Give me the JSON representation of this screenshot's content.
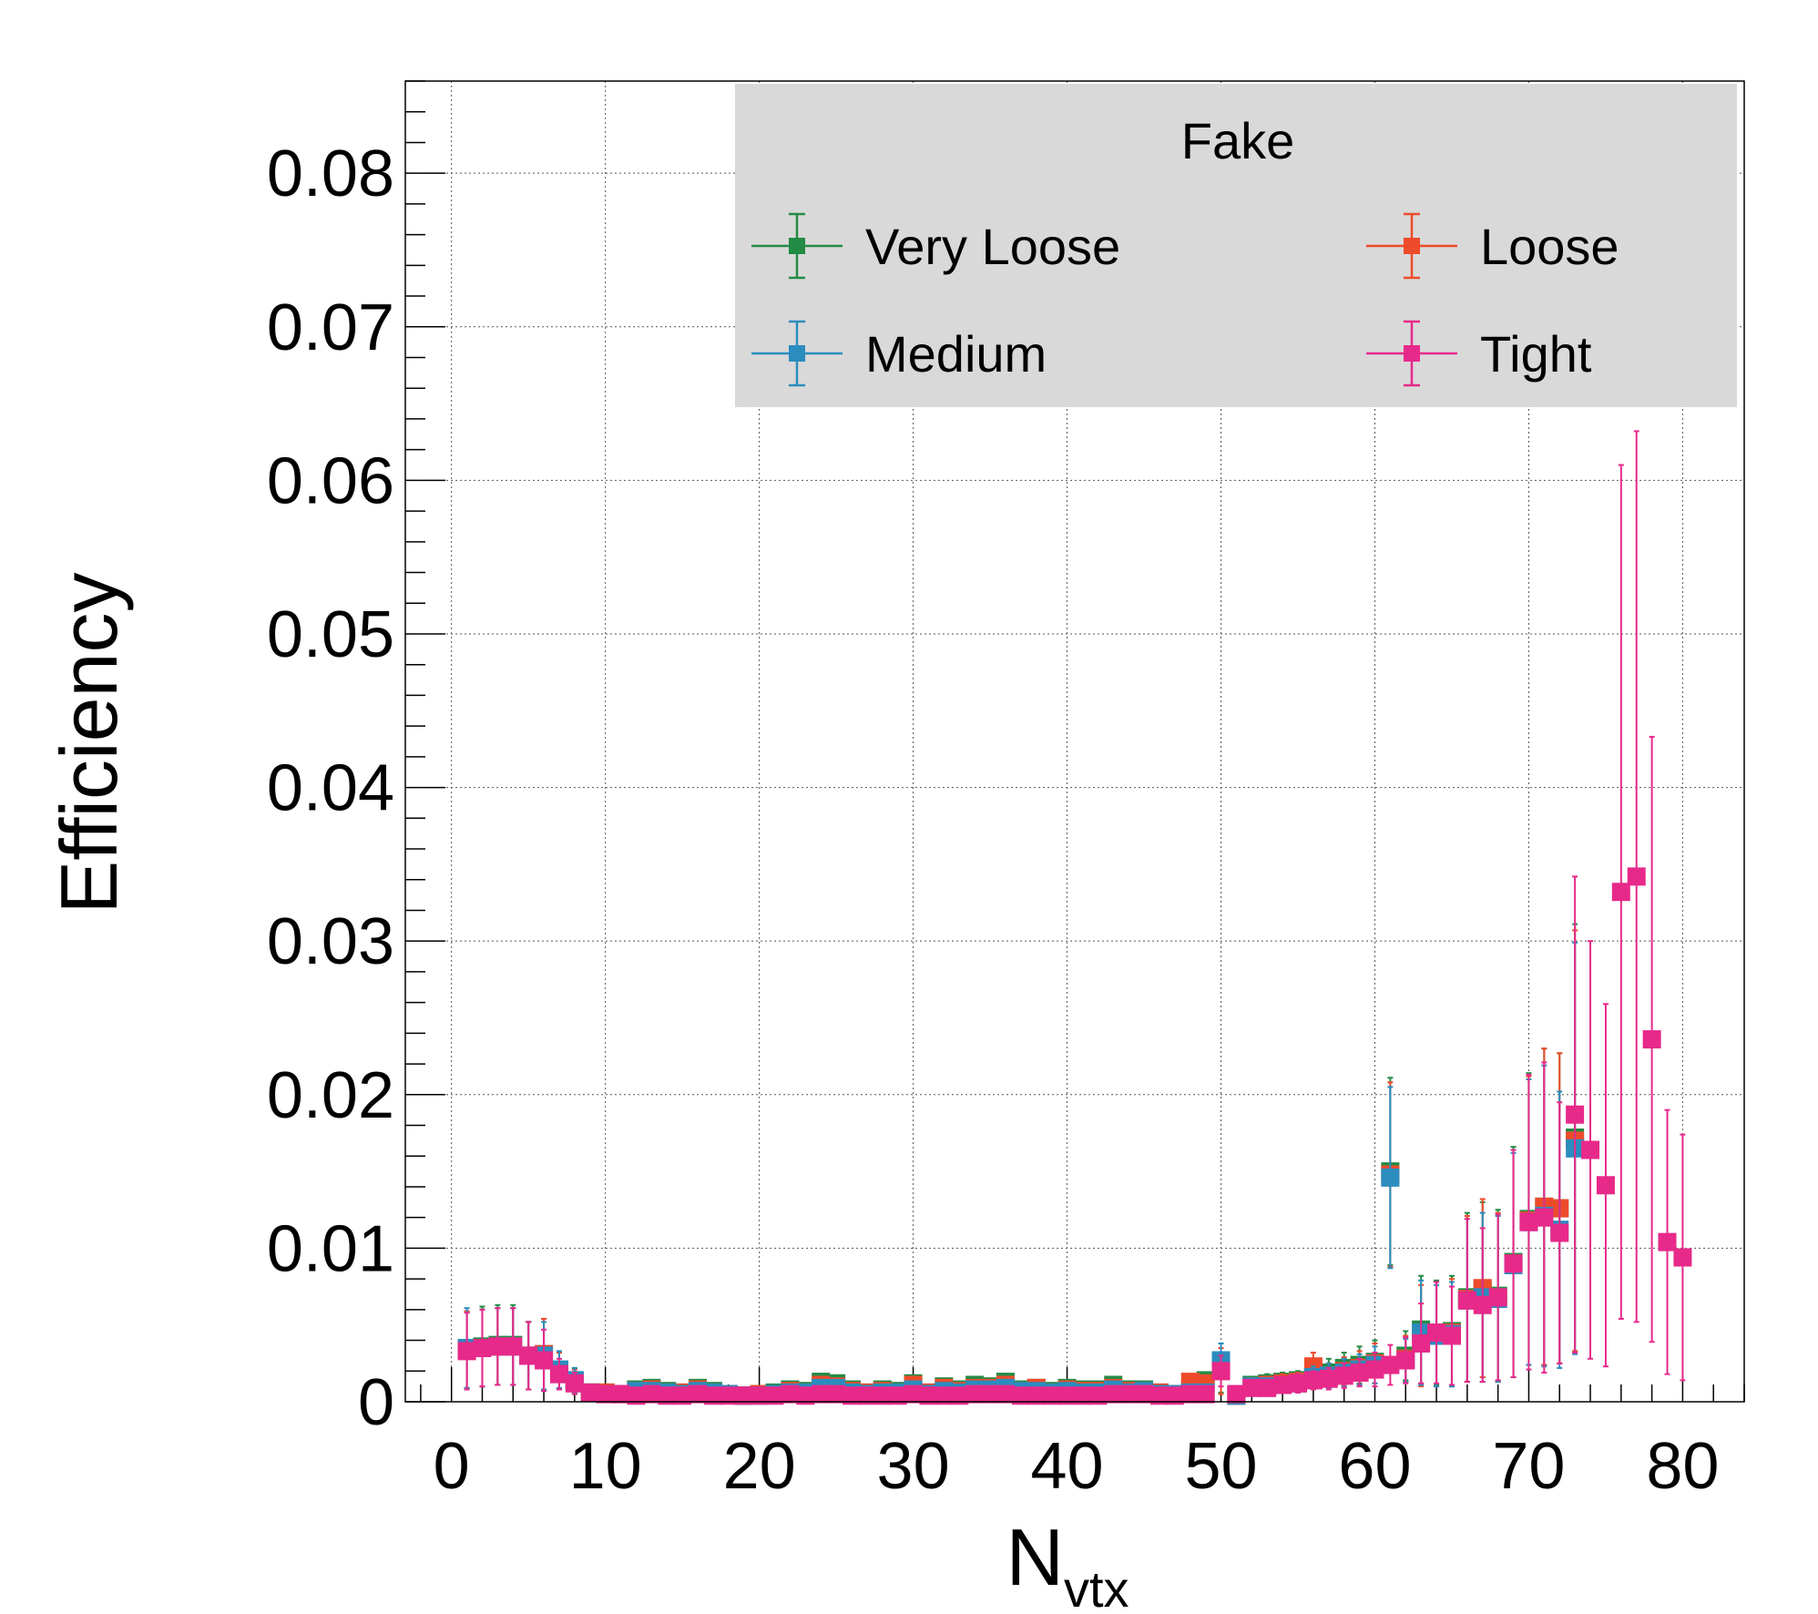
{
  "chart_data": {
    "type": "scatter",
    "xlabel_main": "N",
    "xlabel_sub": "vtx",
    "ylabel": "Efficiency",
    "xlim": [
      -3,
      84
    ],
    "ylim": [
      0,
      0.086
    ],
    "x_ticks": [
      0,
      10,
      20,
      30,
      40,
      50,
      60,
      70,
      80
    ],
    "x_tick_labels": [
      "0",
      "10",
      "20",
      "30",
      "40",
      "50",
      "60",
      "70",
      "80"
    ],
    "y_ticks": [
      0,
      0.01,
      0.02,
      0.03,
      0.04,
      0.05,
      0.06,
      0.07,
      0.08
    ],
    "y_tick_labels": [
      "0",
      "0.01",
      "0.02",
      "0.03",
      "0.04",
      "0.05",
      "0.06",
      "0.07",
      "0.08"
    ],
    "grid": true,
    "legend": {
      "title": "Fake",
      "placement": "top-right",
      "columns": 2
    },
    "series": [
      {
        "name": "Very Loose",
        "color": "#238b45",
        "x": [
          1,
          2,
          3,
          4,
          5,
          6,
          7,
          8,
          9,
          10,
          11,
          12,
          13,
          14,
          15,
          16,
          17,
          18,
          19,
          20,
          21,
          22,
          23,
          24,
          25,
          26,
          27,
          28,
          29,
          30,
          31,
          32,
          33,
          34,
          35,
          36,
          37,
          38,
          39,
          40,
          41,
          42,
          43,
          44,
          45,
          46,
          47,
          48,
          49,
          50,
          51,
          52,
          53,
          54,
          55,
          56,
          57,
          58,
          59,
          60,
          61,
          62,
          63,
          64,
          65,
          66,
          67,
          68,
          69,
          70,
          71,
          72,
          73
        ],
        "y": [
          0.0034,
          0.0036,
          0.0037,
          0.0037,
          0.003,
          0.0031,
          0.002,
          0.0014,
          0.0006,
          0.0006,
          0.0005,
          0.0008,
          0.0009,
          0.0007,
          0.0006,
          0.0009,
          0.0007,
          0.0005,
          0.0004,
          0.0005,
          0.0006,
          0.0008,
          0.0007,
          0.0013,
          0.0012,
          0.0008,
          0.0006,
          0.0008,
          0.0007,
          0.0012,
          0.0006,
          0.001,
          0.0008,
          0.0011,
          0.001,
          0.0013,
          0.0008,
          0.0009,
          0.0007,
          0.0009,
          0.0008,
          0.0008,
          0.0011,
          0.0008,
          0.0008,
          0.0006,
          0.0005,
          0.0008,
          0.0014,
          0.0022,
          0.0004,
          0.0011,
          0.0012,
          0.0013,
          0.0014,
          0.0018,
          0.0019,
          0.0022,
          0.0024,
          0.0026,
          0.015,
          0.003,
          0.0047,
          0.0045,
          0.0046,
          0.0068,
          0.0073,
          0.0069,
          0.0091,
          0.0119,
          0.0127,
          0.0126,
          0.0172
        ],
        "err": [
          0.0025,
          0.0026,
          0.0026,
          0.0026,
          0.0022,
          0.0023,
          0.0012,
          0.0008,
          0.0003,
          0.0003,
          0.0003,
          0.0004,
          0.0004,
          0.0004,
          0.0003,
          0.0004,
          0.0004,
          0.0003,
          0.0003,
          0.0003,
          0.0003,
          0.0004,
          0.0004,
          0.0005,
          0.0005,
          0.0004,
          0.0003,
          0.0004,
          0.0004,
          0.0005,
          0.0003,
          0.0004,
          0.0004,
          0.0005,
          0.0004,
          0.0005,
          0.0004,
          0.0004,
          0.0004,
          0.0004,
          0.0004,
          0.0004,
          0.0005,
          0.0004,
          0.0004,
          0.0003,
          0.0003,
          0.0004,
          0.0005,
          0.0016,
          0.0003,
          0.0005,
          0.0006,
          0.0006,
          0.0006,
          0.0008,
          0.0009,
          0.001,
          0.0012,
          0.0014,
          0.0061,
          0.0016,
          0.0035,
          0.0034,
          0.0036,
          0.0055,
          0.0057,
          0.0056,
          0.0075,
          0.0095,
          0.0103,
          0.0101,
          0.0139
        ]
      },
      {
        "name": "Loose",
        "color": "#ee4b2b",
        "x": [
          1,
          2,
          3,
          4,
          5,
          6,
          7,
          8,
          9,
          10,
          11,
          12,
          13,
          14,
          15,
          16,
          17,
          18,
          19,
          20,
          21,
          22,
          23,
          24,
          25,
          26,
          27,
          28,
          29,
          30,
          31,
          32,
          33,
          34,
          35,
          36,
          37,
          38,
          39,
          40,
          41,
          42,
          43,
          44,
          45,
          46,
          47,
          48,
          49,
          50,
          51,
          52,
          53,
          54,
          55,
          56,
          57,
          58,
          59,
          60,
          61,
          62,
          63,
          64,
          65,
          66,
          67,
          68,
          69,
          70,
          71,
          72,
          73
        ],
        "y": [
          0.0034,
          0.0035,
          0.0036,
          0.0036,
          0.003,
          0.0031,
          0.002,
          0.0013,
          0.0006,
          0.0006,
          0.0005,
          0.0007,
          0.0008,
          0.0006,
          0.0006,
          0.0008,
          0.0006,
          0.0005,
          0.0004,
          0.0005,
          0.0005,
          0.0007,
          0.0006,
          0.0011,
          0.001,
          0.0007,
          0.0006,
          0.0007,
          0.0006,
          0.0011,
          0.0006,
          0.0009,
          0.0007,
          0.0009,
          0.0009,
          0.0011,
          0.0007,
          0.0009,
          0.0006,
          0.0008,
          0.0007,
          0.0007,
          0.0009,
          0.0007,
          0.0007,
          0.0006,
          0.0005,
          0.0013,
          0.0012,
          0.002,
          0.0004,
          0.001,
          0.0011,
          0.0012,
          0.0013,
          0.0023,
          0.0017,
          0.002,
          0.0022,
          0.0025,
          0.0148,
          0.0028,
          0.0043,
          0.0044,
          0.0045,
          0.0067,
          0.0074,
          0.0068,
          0.009,
          0.0118,
          0.0127,
          0.0126,
          0.017
        ],
        "err": [
          0.0025,
          0.0025,
          0.0025,
          0.0025,
          0.0022,
          0.0023,
          0.0012,
          0.0008,
          0.0003,
          0.0003,
          0.0003,
          0.0004,
          0.0004,
          0.0003,
          0.0003,
          0.0004,
          0.0003,
          0.0003,
          0.0003,
          0.0003,
          0.0003,
          0.0004,
          0.0003,
          0.0005,
          0.0004,
          0.0004,
          0.0003,
          0.0004,
          0.0003,
          0.0005,
          0.0003,
          0.0004,
          0.0004,
          0.0004,
          0.0004,
          0.0005,
          0.0004,
          0.0004,
          0.0003,
          0.0004,
          0.0004,
          0.0004,
          0.0004,
          0.0004,
          0.0004,
          0.0003,
          0.0003,
          0.0005,
          0.0005,
          0.0015,
          0.0003,
          0.0005,
          0.0005,
          0.0006,
          0.0006,
          0.0009,
          0.0008,
          0.0009,
          0.0011,
          0.0013,
          0.006,
          0.0015,
          0.0033,
          0.0034,
          0.0035,
          0.0054,
          0.0058,
          0.0055,
          0.0074,
          0.0094,
          0.0103,
          0.0101,
          0.0137
        ]
      },
      {
        "name": "Medium",
        "color": "#2b8cbe",
        "x": [
          1,
          2,
          3,
          4,
          5,
          6,
          7,
          8,
          9,
          10,
          11,
          12,
          13,
          14,
          15,
          16,
          17,
          18,
          19,
          20,
          21,
          22,
          23,
          24,
          25,
          26,
          27,
          28,
          29,
          30,
          31,
          32,
          33,
          34,
          35,
          36,
          37,
          38,
          39,
          40,
          41,
          42,
          43,
          44,
          45,
          46,
          47,
          48,
          49,
          50,
          51,
          52,
          53,
          54,
          55,
          56,
          57,
          58,
          59,
          60,
          61,
          62,
          63,
          64,
          65,
          66,
          67,
          68,
          69,
          70,
          71,
          72,
          73
        ],
        "y": [
          0.0035,
          0.0035,
          0.0036,
          0.0036,
          0.003,
          0.003,
          0.0021,
          0.0014,
          0.0006,
          0.0005,
          0.0005,
          0.0007,
          0.0007,
          0.0006,
          0.0005,
          0.0007,
          0.0006,
          0.0005,
          0.0004,
          0.0004,
          0.0005,
          0.0006,
          0.0006,
          0.0009,
          0.0009,
          0.0006,
          0.0005,
          0.0006,
          0.0006,
          0.0008,
          0.0005,
          0.0007,
          0.0006,
          0.0008,
          0.0008,
          0.0009,
          0.0007,
          0.0007,
          0.0006,
          0.0007,
          0.0006,
          0.0006,
          0.0008,
          0.0006,
          0.0007,
          0.0005,
          0.0005,
          0.0006,
          0.0006,
          0.0027,
          0.0004,
          0.001,
          0.001,
          0.0011,
          0.0012,
          0.0016,
          0.0017,
          0.0019,
          0.0021,
          0.0024,
          0.0146,
          0.0027,
          0.0045,
          0.0043,
          0.0044,
          0.0066,
          0.0068,
          0.0067,
          0.0089,
          0.0117,
          0.0121,
          0.0112,
          0.0165
        ],
        "err": [
          0.0026,
          0.0025,
          0.0025,
          0.0025,
          0.0022,
          0.0022,
          0.0012,
          0.0008,
          0.0003,
          0.0003,
          0.0003,
          0.0004,
          0.0004,
          0.0003,
          0.0003,
          0.0004,
          0.0003,
          0.0003,
          0.0003,
          0.0003,
          0.0003,
          0.0003,
          0.0003,
          0.0004,
          0.0004,
          0.0003,
          0.0003,
          0.0003,
          0.0003,
          0.0004,
          0.0003,
          0.0004,
          0.0003,
          0.0004,
          0.0004,
          0.0004,
          0.0004,
          0.0004,
          0.0003,
          0.0004,
          0.0003,
          0.0003,
          0.0004,
          0.0003,
          0.0004,
          0.0003,
          0.0003,
          0.0003,
          0.0003,
          0.0011,
          0.0003,
          0.0005,
          0.0005,
          0.0005,
          0.0006,
          0.0007,
          0.0008,
          0.0009,
          0.001,
          0.0012,
          0.0059,
          0.0014,
          0.0034,
          0.0033,
          0.0034,
          0.0053,
          0.0055,
          0.0054,
          0.0073,
          0.0093,
          0.0098,
          0.009,
          0.0134
        ]
      },
      {
        "name": "Tight",
        "color": "#e7298a",
        "x": [
          1,
          2,
          3,
          4,
          5,
          6,
          7,
          8,
          9,
          10,
          11,
          12,
          13,
          14,
          15,
          16,
          17,
          18,
          19,
          20,
          21,
          22,
          23,
          24,
          25,
          26,
          27,
          28,
          29,
          30,
          31,
          32,
          33,
          34,
          35,
          36,
          37,
          38,
          39,
          40,
          41,
          42,
          43,
          44,
          45,
          46,
          47,
          48,
          49,
          50,
          51,
          52,
          53,
          54,
          55,
          56,
          57,
          58,
          59,
          60,
          61,
          62,
          63,
          64,
          65,
          66,
          67,
          68,
          69,
          70,
          71,
          72,
          73,
          74,
          75,
          76,
          77,
          78,
          79,
          80
        ],
        "y": [
          0.0033,
          0.0035,
          0.0036,
          0.0036,
          0.003,
          0.0027,
          0.0018,
          0.0012,
          0.0006,
          0.0005,
          0.0005,
          0.0004,
          0.0005,
          0.0004,
          0.0004,
          0.0005,
          0.0004,
          0.0004,
          0.0004,
          0.0004,
          0.0004,
          0.0005,
          0.0004,
          0.0005,
          0.0005,
          0.0004,
          0.0004,
          0.0004,
          0.0004,
          0.0005,
          0.0004,
          0.0004,
          0.0004,
          0.0005,
          0.0005,
          0.0005,
          0.0004,
          0.0004,
          0.0004,
          0.0004,
          0.0004,
          0.0004,
          0.0005,
          0.0005,
          0.0005,
          0.0004,
          0.0004,
          0.0005,
          0.0005,
          0.002,
          0.0005,
          0.0009,
          0.0009,
          0.0011,
          0.0012,
          0.0014,
          0.0015,
          0.0017,
          0.0019,
          0.0021,
          0.0024,
          0.0027,
          0.0038,
          0.0045,
          0.0043,
          0.0066,
          0.0063,
          0.0068,
          0.009,
          0.0117,
          0.012,
          0.011,
          0.0187,
          0.0164,
          0.0141,
          0.0332,
          0.0342,
          0.0236,
          0.0104,
          0.0094
        ],
        "err": [
          0.0025,
          0.0025,
          0.0025,
          0.0025,
          0.0022,
          0.002,
          0.001,
          0.0007,
          0.0003,
          0.0003,
          0.0003,
          0.0002,
          0.0003,
          0.0002,
          0.0002,
          0.0003,
          0.0002,
          0.0002,
          0.0002,
          0.0002,
          0.0002,
          0.0003,
          0.0002,
          0.0003,
          0.0003,
          0.0002,
          0.0002,
          0.0002,
          0.0002,
          0.0003,
          0.0002,
          0.0002,
          0.0002,
          0.0003,
          0.0003,
          0.0003,
          0.0002,
          0.0002,
          0.0002,
          0.0002,
          0.0002,
          0.0002,
          0.0003,
          0.0003,
          0.0003,
          0.0002,
          0.0002,
          0.0003,
          0.0003,
          0.001,
          0.0003,
          0.0004,
          0.0004,
          0.0005,
          0.0006,
          0.0006,
          0.0007,
          0.0008,
          0.0009,
          0.0011,
          0.0013,
          0.0015,
          0.0026,
          0.0033,
          0.0032,
          0.0053,
          0.005,
          0.0054,
          0.0074,
          0.0096,
          0.0101,
          0.0085,
          0.0155,
          0.0136,
          0.0118,
          0.0278,
          0.029,
          0.0197,
          0.0086,
          0.008
        ]
      }
    ]
  }
}
